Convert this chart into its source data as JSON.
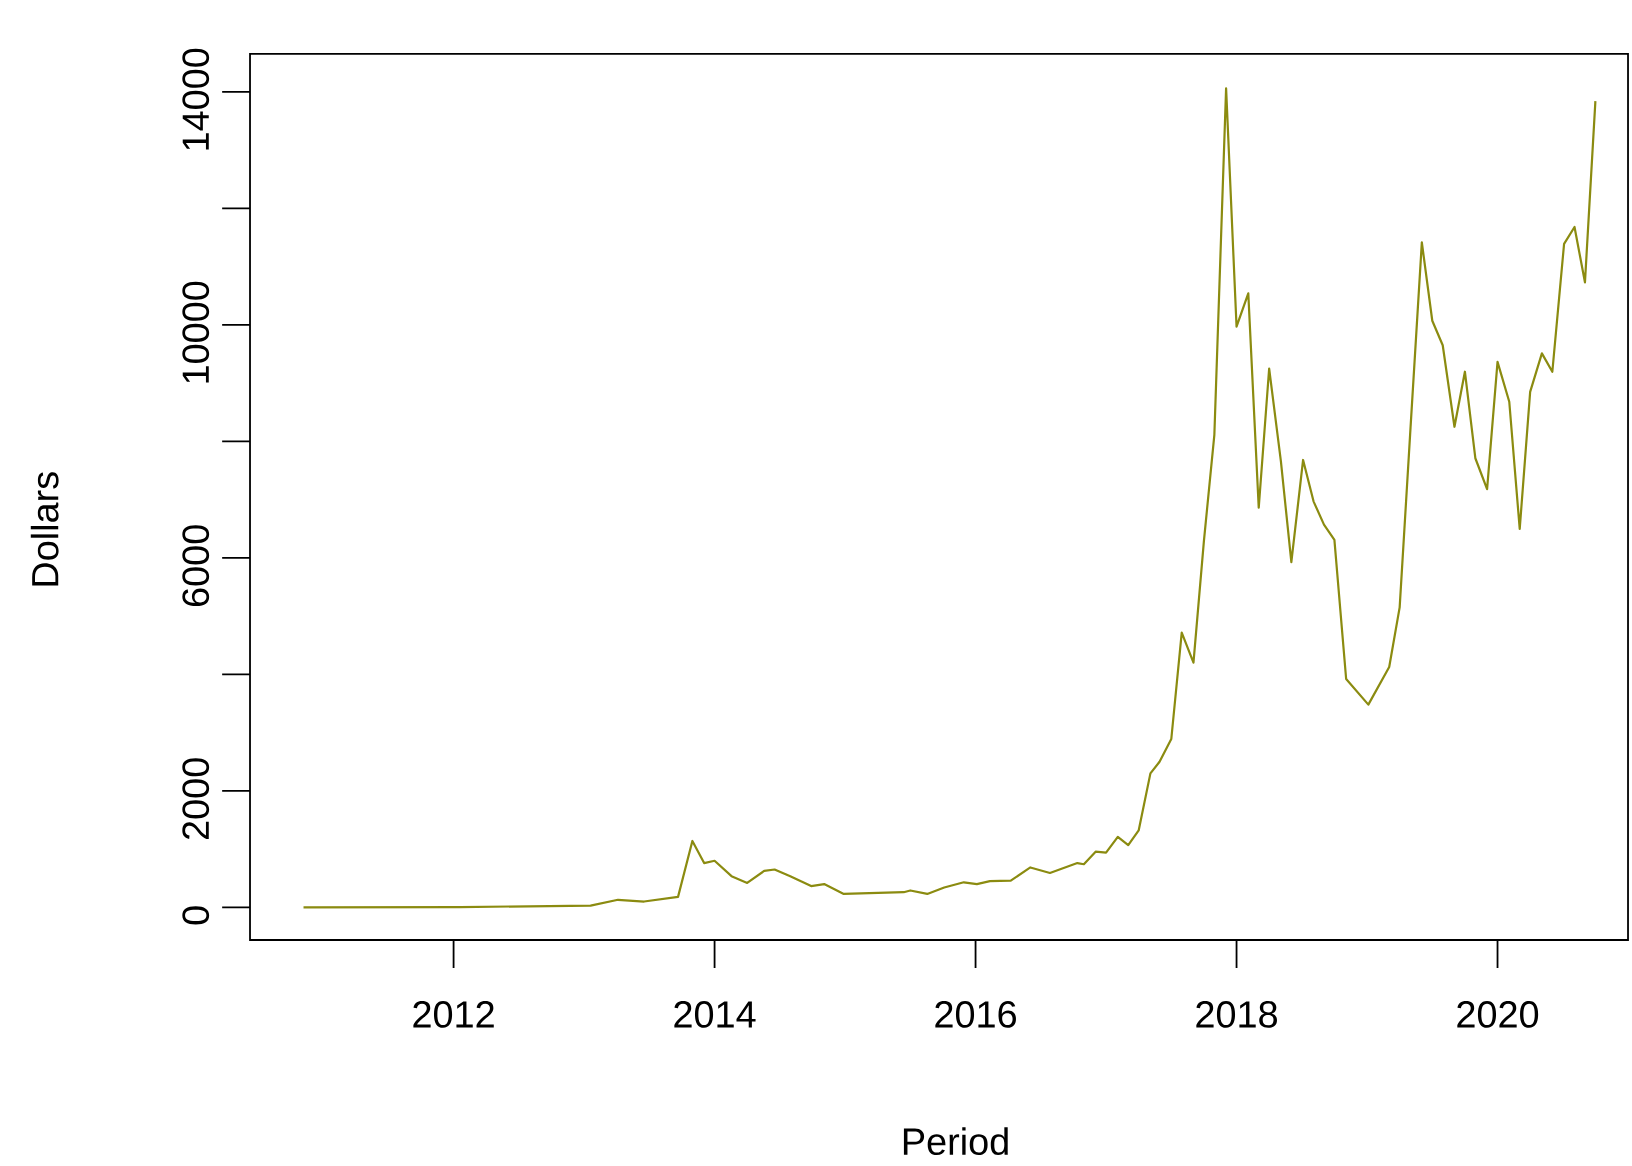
{
  "chart_data": {
    "type": "line",
    "xlabel": "Period",
    "ylabel": "Dollars",
    "x": [
      2010.85,
      2012.05,
      2013.05,
      2013.26,
      2013.46,
      2013.72,
      2013.83,
      2013.92,
      2014.0,
      2014.13,
      2014.25,
      2014.38,
      2014.46,
      2014.58,
      2014.74,
      2014.84,
      2014.99,
      2015.45,
      2015.5,
      2015.63,
      2015.76,
      2015.91,
      2016.01,
      2016.11,
      2016.27,
      2016.42,
      2016.57,
      2016.78,
      2016.83,
      2016.92,
      2017.0,
      2017.09,
      2017.17,
      2017.25,
      2017.34,
      2017.41,
      2017.5,
      2017.58,
      2017.67,
      2017.75,
      2017.83,
      2017.92,
      2018.0,
      2018.09,
      2018.17,
      2018.25,
      2018.34,
      2018.42,
      2018.51,
      2018.59,
      2018.67,
      2018.75,
      2018.84,
      2019.01,
      2019.17,
      2019.25,
      2019.33,
      2019.42,
      2019.5,
      2019.58,
      2019.67,
      2019.75,
      2019.83,
      2019.92,
      2020.0,
      2020.09,
      2020.17,
      2020.25,
      2020.34,
      2020.42,
      2020.51,
      2020.59,
      2020.67,
      2020.75
    ],
    "series": [
      {
        "color": "#8b8b10",
        "values": [
          0,
          5,
          30,
          130,
          100,
          180,
          1140,
          760,
          800,
          535,
          420,
          625,
          650,
          535,
          365,
          400,
          230,
          260,
          290,
          230,
          340,
          430,
          400,
          450,
          460,
          685,
          590,
          760,
          740,
          955,
          940,
          1210,
          1070,
          1320,
          2300,
          2500,
          2890,
          4715,
          4200,
          6290,
          8110,
          14060,
          9970,
          10540,
          6860,
          9250,
          7655,
          5925,
          7680,
          6970,
          6570,
          6310,
          3920,
          3480,
          4125,
          5150,
          8110,
          11415,
          10070,
          9650,
          8250,
          9195,
          7710,
          7180,
          9365,
          8680,
          6495,
          8850,
          9510,
          9195,
          11390,
          11680,
          10730,
          13840
        ]
      }
    ],
    "xlim": [
      2010.44,
      2021.0
    ],
    "xticks": [
      2012,
      2014,
      2016,
      2018,
      2020
    ],
    "ylim": [
      -560,
      14650
    ],
    "yticks": [
      0,
      2000,
      {
        "value": 4000,
        "label": null
      },
      6000,
      {
        "value": 8000,
        "label": null
      },
      10000,
      {
        "value": 12000,
        "label": null
      },
      14000
    ],
    "grid": false,
    "marker": "none",
    "line_style": "solid"
  }
}
